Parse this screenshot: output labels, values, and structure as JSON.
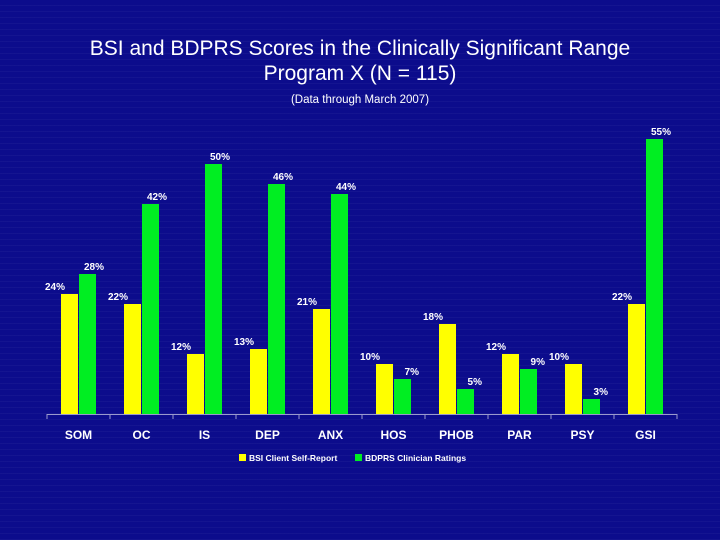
{
  "chart_data": {
    "type": "bar",
    "title": "BSI and BDPRS Scores in the Clinically Significant Range",
    "title_line2": "Program X (N = 115)",
    "subtitle": "(Data through March 2007)",
    "xlabel": "",
    "ylabel": "",
    "ylim": [
      0,
      60
    ],
    "grid": false,
    "legend_position": "bottom",
    "categories": [
      "SOM",
      "OC",
      "IS",
      "DEP",
      "ANX",
      "HOS",
      "PHOB",
      "PAR",
      "PSY",
      "GSI"
    ],
    "series": [
      {
        "name": "BSI Client Self-Report",
        "color": "#ffff00",
        "values": [
          24,
          22,
          12,
          13,
          21,
          10,
          18,
          12,
          10,
          22
        ],
        "labels": [
          "24%",
          "22%",
          "12%",
          "13%",
          "21%",
          "10%",
          "18%",
          "12%",
          "10%",
          "22%"
        ]
      },
      {
        "name": "BDPRS Clinician Ratings",
        "color": "#00ee22",
        "values": [
          28,
          42,
          50,
          46,
          44,
          7,
          5,
          9,
          3,
          55
        ],
        "labels": [
          "28%",
          "42%",
          "50%",
          "46%",
          "44%",
          "7%",
          "5%",
          "9%",
          "3%",
          "55%"
        ]
      }
    ]
  }
}
